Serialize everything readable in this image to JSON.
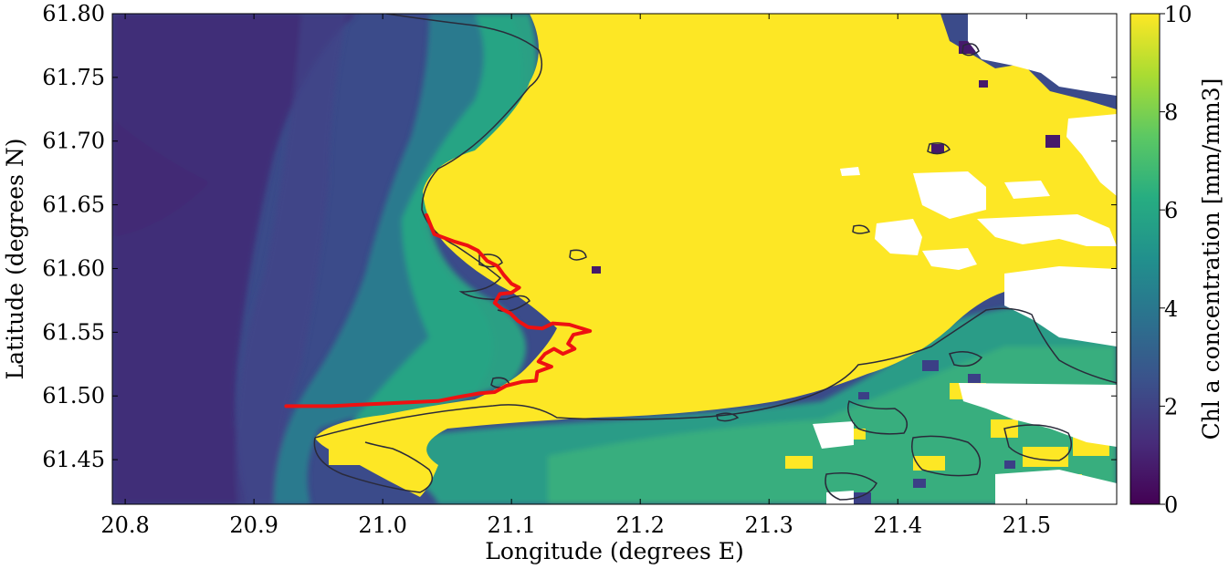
{
  "chart_data": {
    "type": "heatmap",
    "xlabel": "Longitude (degrees E)",
    "ylabel": "Latitude (degrees N)",
    "xlim": [
      20.79,
      21.57
    ],
    "ylim": [
      61.415,
      61.8
    ],
    "x_ticks": [
      "20.8",
      "20.9",
      "21.0",
      "21.1",
      "21.2",
      "21.3",
      "21.4",
      "21.5"
    ],
    "y_ticks": [
      "61.45",
      "61.50",
      "61.55",
      "61.60",
      "61.65",
      "61.70",
      "61.75",
      "61.80"
    ],
    "colorbar": {
      "label": "Chl a concentration [mm/mm3]",
      "range": [
        0,
        10
      ],
      "ticks": [
        "0",
        "2",
        "4",
        "6",
        "8",
        "10"
      ],
      "colormap": "viridis"
    },
    "no_data_color": "#ffffff",
    "contour_color": "#2a2a3a",
    "track": {
      "color": "#ee1111",
      "points": [
        [
          21.034,
          61.642
        ],
        [
          21.04,
          61.627
        ],
        [
          21.056,
          61.621
        ],
        [
          21.066,
          61.618
        ],
        [
          21.074,
          61.614
        ],
        [
          21.081,
          61.606
        ],
        [
          21.089,
          61.602
        ],
        [
          21.094,
          61.595
        ],
        [
          21.1,
          61.588
        ],
        [
          21.106,
          61.585
        ],
        [
          21.1,
          61.581
        ],
        [
          21.091,
          61.58
        ],
        [
          21.087,
          61.573
        ],
        [
          21.093,
          61.568
        ],
        [
          21.099,
          61.565
        ],
        [
          21.105,
          61.559
        ],
        [
          21.113,
          61.554
        ],
        [
          21.124,
          61.553
        ],
        [
          21.132,
          61.557
        ],
        [
          21.145,
          61.556
        ],
        [
          21.161,
          61.551
        ],
        [
          21.148,
          61.548
        ],
        [
          21.144,
          61.541
        ],
        [
          21.149,
          61.537
        ],
        [
          21.14,
          61.533
        ],
        [
          21.133,
          61.537
        ],
        [
          21.126,
          61.533
        ],
        [
          21.121,
          61.527
        ],
        [
          21.131,
          61.523
        ],
        [
          21.12,
          61.519
        ],
        [
          21.119,
          61.512
        ],
        [
          21.108,
          61.511
        ],
        [
          21.096,
          61.508
        ],
        [
          21.087,
          61.503
        ],
        [
          21.075,
          61.502
        ],
        [
          21.058,
          61.499
        ],
        [
          21.043,
          61.496
        ],
        [
          21.02,
          61.495
        ],
        [
          21.0,
          61.494
        ],
        [
          20.978,
          61.493
        ],
        [
          20.96,
          61.492
        ],
        [
          20.94,
          61.492
        ],
        [
          20.925,
          61.492
        ]
      ]
    }
  }
}
